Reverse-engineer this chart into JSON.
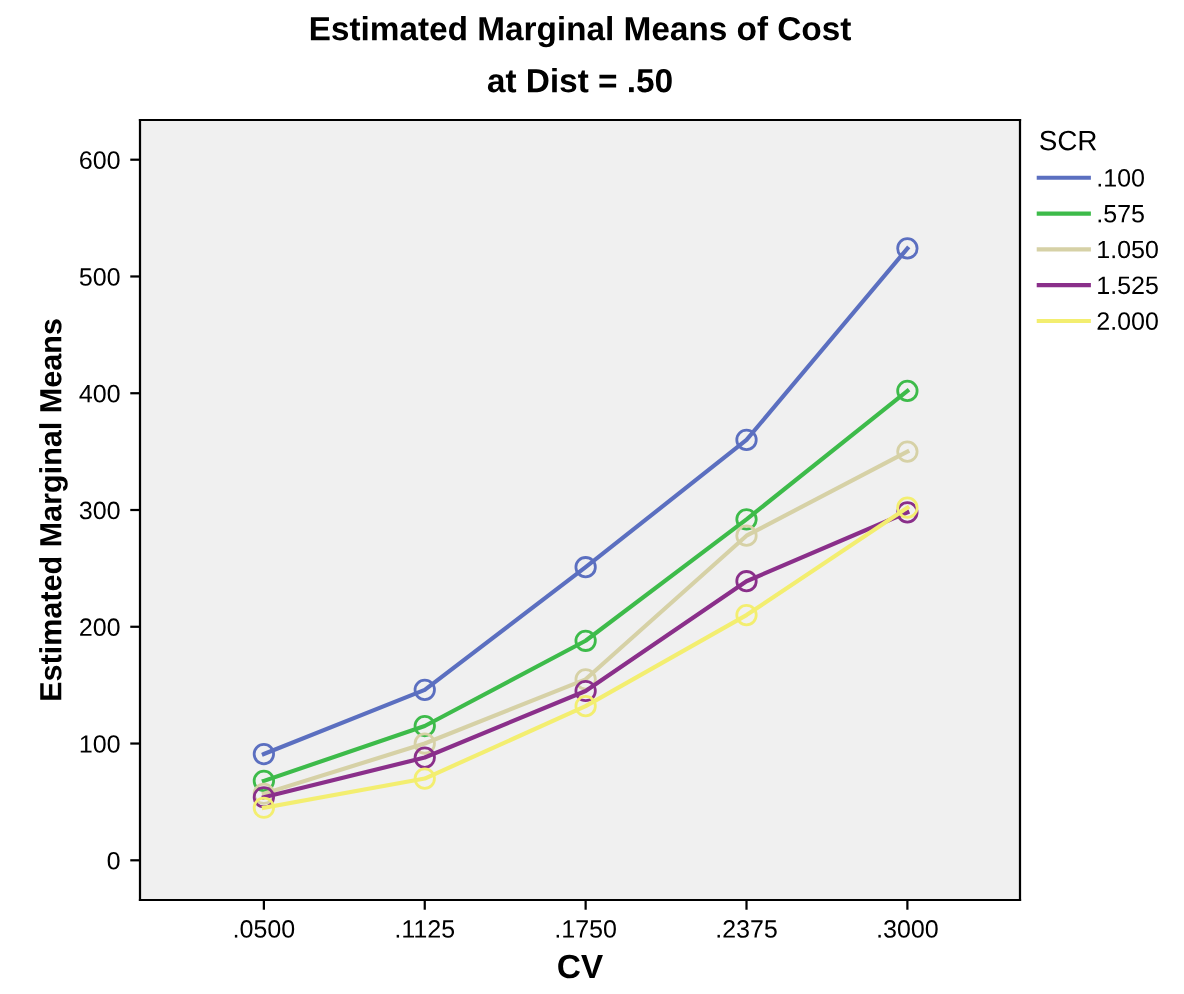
{
  "chart_data": {
    "type": "line",
    "title": "Estimated Marginal Means of Cost",
    "subtitle": "at Dist = .50",
    "xlabel": "CV",
    "ylabel": "Estimated Marginal Means",
    "legend_title": "SCR",
    "categories": [
      ".0500",
      ".1125",
      ".1750",
      ".2375",
      ".3000"
    ],
    "series": [
      {
        "name": ".100",
        "color": "#5b6fc0",
        "values": [
          91,
          146,
          251,
          360,
          524
        ]
      },
      {
        "name": ".575",
        "color": "#3dbb4a",
        "values": [
          68,
          115,
          188,
          292,
          402
        ]
      },
      {
        "name": "1.050",
        "color": "#d6d1a6",
        "values": [
          57,
          100,
          155,
          278,
          350
        ]
      },
      {
        "name": "1.525",
        "color": "#8a2f8a",
        "values": [
          54,
          88,
          145,
          239,
          298
        ]
      },
      {
        "name": "2.000",
        "color": "#f3ee70",
        "values": [
          45,
          70,
          132,
          210,
          302
        ]
      }
    ],
    "ylim": [
      -34,
      634
    ],
    "yticks": [
      0,
      100,
      200,
      300,
      400,
      500,
      600
    ],
    "grid": false,
    "legend": "right",
    "marker": "circle",
    "line_style": "solid"
  }
}
